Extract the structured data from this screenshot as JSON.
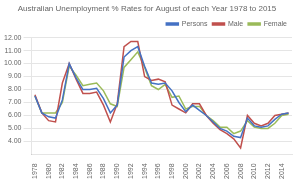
{
  "chart_data": {
    "type": "line",
    "title": "Australian Unemployment % Rates for August of each Year 1978 to 2015",
    "x": [
      1978,
      1979,
      1980,
      1981,
      1982,
      1983,
      1984,
      1985,
      1986,
      1987,
      1988,
      1989,
      1990,
      1991,
      1992,
      1993,
      1994,
      1995,
      1996,
      1997,
      1998,
      1999,
      2000,
      2001,
      2002,
      2003,
      2004,
      2005,
      2006,
      2007,
      2008,
      2009,
      2010,
      2011,
      2012,
      2013,
      2014,
      2015
    ],
    "series": [
      {
        "name": "Persons",
        "color": "#4472c4",
        "values": [
          7.5,
          6.2,
          5.9,
          5.8,
          7.2,
          10.0,
          8.9,
          8.0,
          8.0,
          8.1,
          7.3,
          6.2,
          6.8,
          10.5,
          11.0,
          11.3,
          9.8,
          8.5,
          8.4,
          8.5,
          7.9,
          7.0,
          6.3,
          6.8,
          6.4,
          6.0,
          5.5,
          5.0,
          4.8,
          4.4,
          4.3,
          5.8,
          5.2,
          5.1,
          5.2,
          5.7,
          6.1,
          6.2
        ]
      },
      {
        "name": "Male",
        "color": "#c0504d",
        "values": [
          7.6,
          6.2,
          5.6,
          5.5,
          8.5,
          10.0,
          8.8,
          7.7,
          7.7,
          7.8,
          6.8,
          5.5,
          6.9,
          11.3,
          11.7,
          11.7,
          9.0,
          8.7,
          8.8,
          8.6,
          6.8,
          6.5,
          6.2,
          6.9,
          6.9,
          6.0,
          5.4,
          4.9,
          4.6,
          4.2,
          3.5,
          6.0,
          5.4,
          5.2,
          5.4,
          6.0,
          6.1,
          6.2
        ]
      },
      {
        "name": "Female",
        "color": "#9bbb59",
        "values": [
          7.5,
          6.2,
          6.2,
          6.2,
          7.0,
          9.8,
          9.1,
          8.3,
          8.4,
          8.5,
          7.9,
          6.9,
          6.7,
          9.7,
          10.3,
          10.9,
          9.7,
          8.3,
          8.0,
          8.4,
          7.4,
          7.5,
          6.5,
          6.7,
          6.7,
          6.0,
          5.6,
          5.1,
          5.1,
          4.6,
          4.8,
          5.6,
          5.1,
          5.0,
          5.0,
          5.4,
          6.0,
          6.1
        ]
      }
    ],
    "xlim": [
      1977.5,
      2015.5
    ],
    "xticks": [
      1978,
      1980,
      1982,
      1984,
      1986,
      1988,
      1990,
      1992,
      1994,
      1996,
      1998,
      2000,
      2002,
      2004,
      2006,
      2008,
      2010,
      2012,
      2014
    ],
    "ylim": [
      3.0,
      12.0
    ],
    "yticks": [
      {
        "value": 4.0,
        "label": "4.00"
      },
      {
        "value": 5.0,
        "label": "5.00"
      },
      {
        "value": 6.0,
        "label": "6.00"
      },
      {
        "value": 7.0,
        "label": "7.00"
      },
      {
        "value": 8.0,
        "label": "8.00"
      },
      {
        "value": 9.0,
        "label": "9.00"
      },
      {
        "value": 10.0,
        "label": "10.00"
      },
      {
        "value": 11.0,
        "label": "11.00"
      },
      {
        "value": 12.0,
        "label": "12.00"
      }
    ],
    "grid": "y",
    "legend": "upper right"
  }
}
